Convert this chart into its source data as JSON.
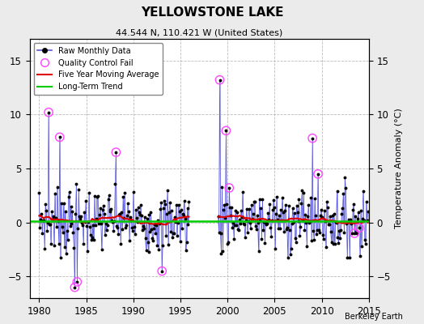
{
  "title": "YELLOWSTONE LAKE",
  "subtitle": "44.544 N, 110.421 W (United States)",
  "ylabel": "Temperature Anomaly (°C)",
  "credit": "Berkeley Earth",
  "xlim": [
    1979,
    2015
  ],
  "ylim": [
    -7,
    17
  ],
  "yticks": [
    -5,
    0,
    5,
    10,
    15
  ],
  "xticks": [
    1980,
    1985,
    1990,
    1995,
    2000,
    2005,
    2010,
    2015
  ],
  "bg_color": "#ebebeb",
  "plot_bg_color": "#ffffff",
  "raw_line_color": "#5555dd",
  "raw_marker_color": "#000000",
  "qc_fail_color": "#ff44ff",
  "moving_avg_color": "#dd0000",
  "trend_color": "#00cc00",
  "seed": 7
}
